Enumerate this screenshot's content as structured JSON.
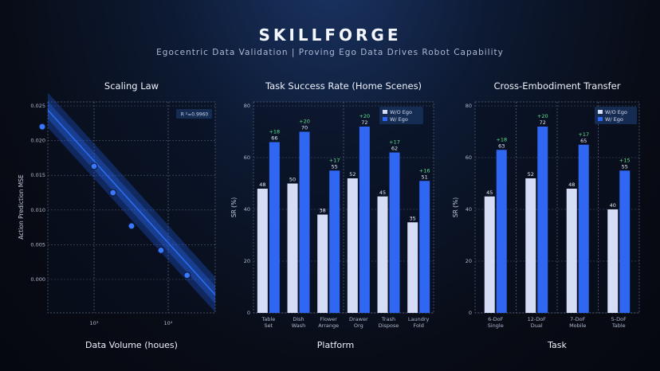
{
  "header": {
    "title": "SKILLFORGE",
    "subtitle": "Egocentric Data Validation | Proving Ego Data Drives Robot Capability"
  },
  "colors": {
    "wo": "#d5dcf5",
    "w": "#2f66f2",
    "delta": "#5fe08a",
    "line": "#2b6df0"
  },
  "chart_data": [
    {
      "type": "line",
      "title": "Scaling Law",
      "xlabel": "Data Volume  (houes)",
      "ylabel": "Action Prediction MSE",
      "annotation": "R ²=0.9960",
      "x_ticks": [
        "10³",
        "10⁴"
      ],
      "yticks": [
        "0.025",
        "0.020",
        "0.015",
        "0.010",
        "0.005",
        "0.000"
      ],
      "ylim": [
        -0.0015,
        0.025
      ],
      "x": [
        200,
        1000,
        1800,
        3200,
        8000,
        18000
      ],
      "y": [
        0.022,
        0.0163,
        0.0125,
        0.0077,
        0.0042,
        0.0006
      ]
    },
    {
      "type": "bar",
      "title": "Task Success Rate (Home Scenes)",
      "xlabel": "Platform",
      "ylabel": "SR (%)",
      "ylim": [
        0,
        80
      ],
      "yticks": [
        "0",
        "20",
        "40",
        "60",
        "80"
      ],
      "categories": [
        [
          "Table",
          "Set"
        ],
        [
          "Dish",
          "Wash"
        ],
        [
          "Flower",
          "Arrange"
        ],
        [
          "Drawer",
          "Org"
        ],
        [
          "Trash",
          "Dispose"
        ],
        [
          "Laundry",
          "Fold"
        ]
      ],
      "legend_position": "top-right",
      "series": [
        {
          "name": "W/O Ego",
          "values": [
            48,
            50,
            38,
            52,
            45,
            35
          ]
        },
        {
          "name": "W/ Ego",
          "values": [
            66,
            70,
            55,
            72,
            62,
            51
          ]
        }
      ],
      "deltas": [
        "+18",
        "+20",
        "+17",
        "+20",
        "+17",
        "+16"
      ],
      "dividers_after": [
        3
      ]
    },
    {
      "type": "bar",
      "title": "Cross-Embodiment Transfer",
      "xlabel": "Task",
      "ylabel": "SR (%)",
      "ylim": [
        0,
        80
      ],
      "yticks": [
        "0",
        "20",
        "40",
        "60",
        "80"
      ],
      "categories": [
        [
          "6-DoF",
          "Single"
        ],
        [
          "12-DoF",
          "Dual"
        ],
        [
          "7-DoF",
          "Mobile"
        ],
        [
          "5-DoF",
          "Table"
        ]
      ],
      "legend_position": "top-right",
      "series": [
        {
          "name": "W/O Ego",
          "values": [
            45,
            52,
            48,
            40
          ]
        },
        {
          "name": "W/ Ego",
          "values": [
            63,
            72,
            65,
            55
          ]
        }
      ],
      "deltas": [
        "+18",
        "+20",
        "+17",
        "+15"
      ],
      "dividers_after": [
        1,
        2,
        3
      ]
    }
  ]
}
